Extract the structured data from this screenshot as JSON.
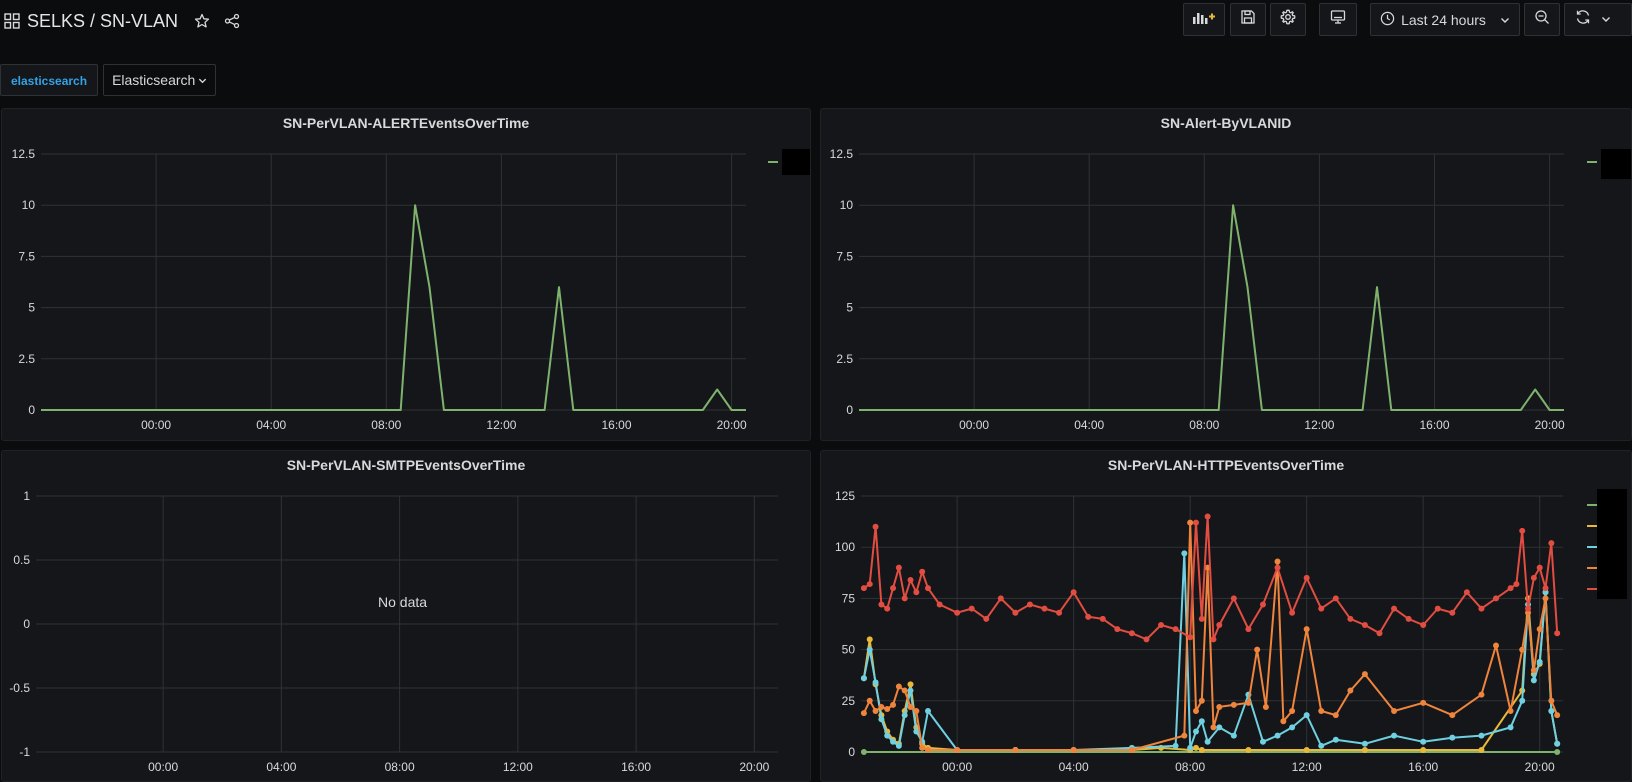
{
  "header": {
    "title": "SELKS / SN-VLAN",
    "time_range": "Last 24 hours"
  },
  "variables": {
    "label": "elasticsearch",
    "selected": "Elasticsearch"
  },
  "colors": {
    "green": "#7eb26d",
    "yellow": "#eab839",
    "cyan": "#6ed0e0",
    "orange": "#ef843c",
    "red": "#e24d42"
  },
  "panels": {
    "alert_over_time": {
      "title": "SN-PerVLAN-ALERTEventsOverTime",
      "chart_data": {
        "type": "line",
        "x_ticks": [
          "00:00",
          "04:00",
          "08:00",
          "12:00",
          "16:00",
          "20:00"
        ],
        "y_ticks": [
          "0",
          "2.5",
          "5",
          "7.5",
          "10",
          "12.5"
        ],
        "ylim": [
          0,
          12.5
        ],
        "xlim_hours": [
          -4,
          20.5
        ],
        "series": [
          {
            "name": "",
            "color": "#7eb26d",
            "x": [
              -4,
              8.5,
              9.0,
              9.5,
              10.0,
              13.5,
              14.0,
              14.5,
              19.0,
              19.5,
              20.0,
              20.5
            ],
            "values": [
              0,
              0,
              10,
              6,
              0,
              0,
              6,
              0,
              0,
              1,
              0,
              0
            ]
          }
        ]
      }
    },
    "alert_by_vlan": {
      "title": "SN-Alert-ByVLANID",
      "chart_data": {
        "type": "line",
        "x_ticks": [
          "00:00",
          "04:00",
          "08:00",
          "12:00",
          "16:00",
          "20:00"
        ],
        "y_ticks": [
          "0",
          "2.5",
          "5",
          "7.5",
          "10",
          "12.5"
        ],
        "ylim": [
          0,
          12.5
        ],
        "xlim_hours": [
          -4,
          20.5
        ],
        "series": [
          {
            "name": "",
            "color": "#7eb26d",
            "x": [
              -4,
              8.5,
              9.0,
              9.5,
              10.0,
              13.5,
              14.0,
              14.5,
              19.0,
              19.5,
              20.0,
              20.5
            ],
            "values": [
              0,
              0,
              10,
              6,
              0,
              0,
              6,
              0,
              0,
              1,
              0,
              0
            ]
          }
        ]
      }
    },
    "smtp_over_time": {
      "title": "SN-PerVLAN-SMTPEventsOverTime",
      "no_data": "No data",
      "chart_data": {
        "type": "line",
        "x_ticks": [
          "00:00",
          "04:00",
          "08:00",
          "12:00",
          "16:00",
          "20:00"
        ],
        "y_ticks": [
          "-1",
          "-0.5",
          "0",
          "0.5",
          "1"
        ],
        "ylim": [
          -1,
          1
        ],
        "xlim_hours": [
          -4.3,
          20.8
        ],
        "series": []
      }
    },
    "http_over_time": {
      "title": "SN-PerVLAN-HTTPEventsOverTime",
      "chart_data": {
        "type": "line",
        "x_ticks": [
          "00:00",
          "04:00",
          "08:00",
          "12:00",
          "16:00",
          "20:00"
        ],
        "y_ticks": [
          "0",
          "25",
          "50",
          "75",
          "100",
          "125"
        ],
        "ylim": [
          0,
          125
        ],
        "xlim_hours": [
          -3.3,
          20.8
        ],
        "series": [
          {
            "name": "",
            "color": "#7eb26d",
            "x": [
              -3.2,
              20.6
            ],
            "values": [
              0,
              0
            ]
          },
          {
            "name": "",
            "color": "#eab839",
            "x": [
              -3.2,
              -3.0,
              -2.8,
              -2.6,
              -2.4,
              -2.2,
              -2.0,
              -1.8,
              -1.6,
              -1.4,
              -1.2,
              -1.0,
              0.0,
              2.0,
              4.0,
              6.0,
              7.0,
              8.0,
              8.2,
              8.4,
              10.0,
              12.0,
              14.0,
              16.0,
              18.0,
              19.4,
              19.6,
              19.8,
              20.0,
              20.2,
              20.4,
              20.6
            ],
            "values": [
              36,
              55,
              33,
              18,
              10,
              6,
              4,
              20,
              33,
              12,
              4,
              2,
              1,
              1,
              1,
              1,
              2,
              1,
              2,
              1,
              1,
              1,
              1,
              1,
              1,
              30,
              75,
              38,
              43,
              78,
              20,
              4
            ]
          },
          {
            "name": "",
            "color": "#6ed0e0",
            "x": [
              -3.2,
              -3.0,
              -2.8,
              -2.6,
              -2.4,
              -2.2,
              -2.0,
              -1.8,
              -1.6,
              -1.4,
              -1.2,
              -1.0,
              0.0,
              2.0,
              4.0,
              6.0,
              7.5,
              7.8,
              8.0,
              8.2,
              8.4,
              8.6,
              9.0,
              9.5,
              10.0,
              10.5,
              11.0,
              11.5,
              12.0,
              12.5,
              13.0,
              14.0,
              15.0,
              16.0,
              17.0,
              18.0,
              19.0,
              19.4,
              19.6,
              19.8,
              20.0,
              20.2,
              20.4,
              20.6
            ],
            "values": [
              36,
              50,
              34,
              16,
              8,
              5,
              3,
              18,
              30,
              10,
              5,
              20,
              1,
              1,
              1,
              2,
              3,
              97,
              2,
              10,
              15,
              5,
              12,
              8,
              28,
              5,
              8,
              12,
              18,
              3,
              6,
              4,
              8,
              5,
              7,
              8,
              12,
              25,
              72,
              35,
              44,
              78,
              20,
              4
            ]
          },
          {
            "name": "",
            "color": "#ef843c",
            "x": [
              -3.2,
              -3.0,
              -2.8,
              -2.6,
              -2.4,
              -2.2,
              -2.0,
              -1.8,
              -1.6,
              -1.4,
              -1.2,
              -1.0,
              0.0,
              2.0,
              4.0,
              6.0,
              7.8,
              8.0,
              8.2,
              8.4,
              8.6,
              8.8,
              9.0,
              9.5,
              10.0,
              10.3,
              10.6,
              11.0,
              11.2,
              11.5,
              12.0,
              12.5,
              13.0,
              13.5,
              14.0,
              15.0,
              16.0,
              17.0,
              18.0,
              18.5,
              19.0,
              19.4,
              19.6,
              19.8,
              20.0,
              20.2,
              20.4,
              20.6
            ],
            "values": [
              19,
              25,
              20,
              22,
              21,
              23,
              32,
              30,
              22,
              20,
              2,
              1,
              1,
              1,
              1,
              1,
              8,
              112,
              20,
              25,
              90,
              12,
              22,
              23,
              24,
              50,
              22,
              93,
              15,
              20,
              60,
              20,
              18,
              30,
              38,
              20,
              24,
              18,
              28,
              52,
              20,
              50,
              68,
              40,
              60,
              75,
              25,
              18
            ]
          },
          {
            "name": "",
            "color": "#e24d42",
            "x": [
              -3.2,
              -3.0,
              -2.8,
              -2.6,
              -2.4,
              -2.2,
              -2.0,
              -1.8,
              -1.6,
              -1.4,
              -1.2,
              -1.0,
              -0.6,
              0.0,
              0.5,
              1.0,
              1.5,
              2.0,
              2.5,
              3.0,
              3.5,
              4.0,
              4.5,
              5.0,
              5.5,
              6.0,
              6.5,
              7.0,
              7.5,
              8.0,
              8.2,
              8.4,
              8.6,
              8.8,
              9.0,
              9.5,
              10.0,
              10.5,
              11.0,
              11.5,
              12.0,
              12.5,
              13.0,
              13.5,
              14.0,
              14.5,
              15.0,
              15.5,
              16.0,
              16.5,
              17.0,
              17.5,
              18.0,
              18.5,
              19.0,
              19.2,
              19.4,
              19.6,
              19.8,
              20.0,
              20.2,
              20.4,
              20.6
            ],
            "values": [
              80,
              82,
              110,
              72,
              70,
              80,
              90,
              75,
              84,
              78,
              88,
              80,
              72,
              68,
              70,
              65,
              75,
              68,
              72,
              70,
              68,
              78,
              66,
              65,
              60,
              58,
              55,
              62,
              60,
              56,
              112,
              65,
              115,
              55,
              62,
              75,
              60,
              72,
              90,
              68,
              85,
              70,
              75,
              65,
              62,
              58,
              70,
              65,
              62,
              70,
              68,
              78,
              70,
              75,
              80,
              82,
              108,
              70,
              85,
              90,
              80,
              102,
              58
            ]
          }
        ]
      }
    }
  }
}
